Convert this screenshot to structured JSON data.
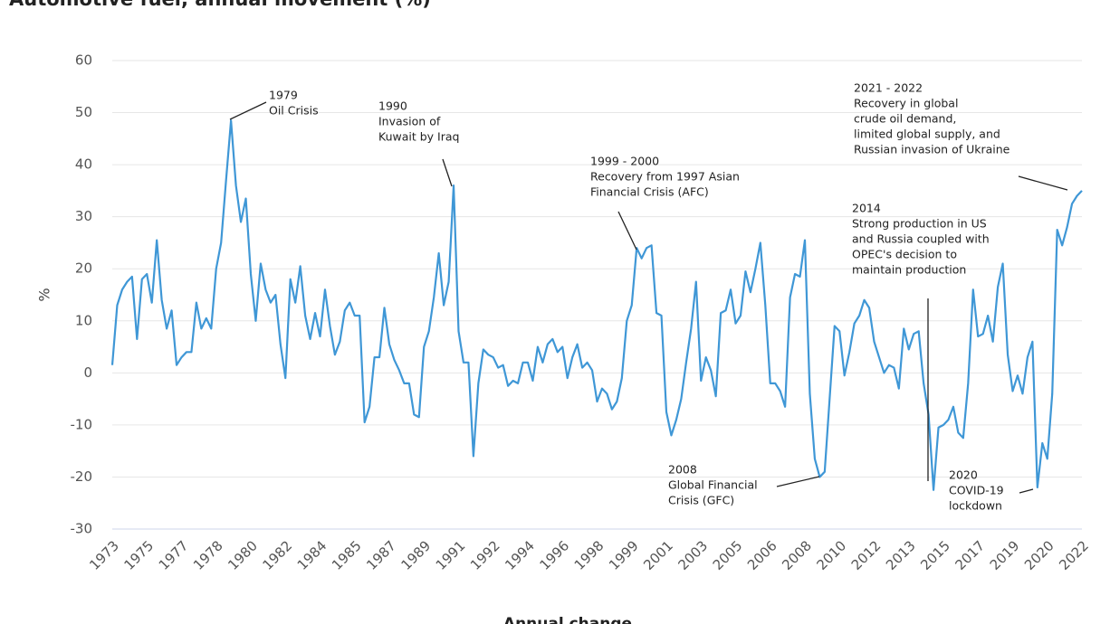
{
  "chart_data": {
    "type": "line",
    "title": "Automotive fuel, annual movement (%)",
    "x_label": "Annual change",
    "y_label": "%",
    "categories": [
      "1973",
      null,
      null,
      null,
      null,
      null,
      null,
      "1975",
      null,
      null,
      null,
      null,
      null,
      null,
      "1977",
      null,
      null,
      null,
      null,
      null,
      null,
      "1978",
      null,
      null,
      null,
      null,
      null,
      null,
      "1980",
      null,
      null,
      null,
      null,
      null,
      null,
      "1982",
      null,
      null,
      null,
      null,
      null,
      null,
      "1984",
      null,
      null,
      null,
      null,
      null,
      null,
      "1985",
      null,
      null,
      null,
      null,
      null,
      null,
      "1987",
      null,
      null,
      null,
      null,
      null,
      null,
      "1989",
      null,
      null,
      null,
      null,
      null,
      null,
      "1991",
      null,
      null,
      null,
      null,
      null,
      null,
      "1992",
      null,
      null,
      null,
      null,
      null,
      null,
      "1994",
      null,
      null,
      null,
      null,
      null,
      null,
      "1996",
      null,
      null,
      null,
      null,
      null,
      null,
      "1998",
      null,
      null,
      null,
      null,
      null,
      null,
      "1999",
      null,
      null,
      null,
      null,
      null,
      null,
      "2001",
      null,
      null,
      null,
      null,
      null,
      null,
      "2003",
      null,
      null,
      null,
      null,
      null,
      null,
      "2005",
      null,
      null,
      null,
      null,
      null,
      null,
      "2006",
      null,
      null,
      null,
      null,
      null,
      null,
      "2008",
      null,
      null,
      null,
      null,
      null,
      null,
      "2010",
      null,
      null,
      null,
      null,
      null,
      null,
      "2012",
      null,
      null,
      null,
      null,
      null,
      null,
      "2013",
      null,
      null,
      null,
      null,
      null,
      null,
      "2015",
      null,
      null,
      null,
      null,
      null,
      null,
      "2017",
      null,
      null,
      null,
      null,
      null,
      null,
      "2019",
      null,
      null,
      null,
      null,
      null,
      null,
      "2020",
      null,
      null,
      null,
      null,
      null,
      null,
      "2022"
    ],
    "values": [
      1.5,
      13,
      16,
      17.5,
      18.5,
      6.5,
      18,
      19,
      13.5,
      25.5,
      14,
      8.5,
      12,
      1.5,
      3,
      4,
      4,
      13.5,
      8.5,
      10.5,
      8.5,
      20,
      25,
      37,
      48.5,
      36,
      29,
      33.5,
      19,
      10,
      21,
      16,
      13.5,
      15,
      5.5,
      -1,
      18,
      13.5,
      20.5,
      11,
      6.5,
      11.5,
      7,
      16,
      9,
      3.5,
      6,
      12,
      13.5,
      11,
      11,
      -9.5,
      -6.5,
      3,
      3,
      12.5,
      5.5,
      2.5,
      0.5,
      -2,
      -2,
      -8,
      -8.5,
      5,
      8,
      14.5,
      23,
      13,
      17.5,
      36,
      8,
      2,
      2,
      -16,
      -2,
      4.5,
      3.5,
      3,
      1,
      1.5,
      -2.5,
      -1.5,
      -2,
      2,
      2,
      -1.5,
      5,
      2,
      5.5,
      6.5,
      4,
      5,
      -1,
      3,
      5.5,
      1,
      2,
      0.5,
      -5.5,
      -3,
      -4,
      -7,
      -5.5,
      -1,
      10,
      13,
      24,
      22,
      24,
      24.5,
      11.5,
      11,
      -7.5,
      -12,
      -9,
      -5,
      2,
      8.5,
      17.5,
      -1.5,
      3,
      0.5,
      -4.5,
      11.5,
      12,
      16,
      9.5,
      11,
      19.5,
      15.5,
      20,
      25,
      13,
      -2,
      -2,
      -3.5,
      -6.5,
      14.5,
      19,
      18.5,
      25.5,
      -4,
      -16.5,
      -20,
      -19,
      -5,
      9,
      8,
      -0.5,
      4,
      9.5,
      11,
      14,
      12.5,
      6,
      3,
      0,
      1.5,
      1,
      -3,
      8.5,
      4.5,
      7.5,
      8,
      -2,
      -8,
      -22.5,
      -10.5,
      -10,
      -9,
      -6.5,
      -11.5,
      -12.5,
      -2,
      16,
      7,
      7.5,
      11,
      6,
      16.5,
      21,
      3.5,
      -3.5,
      -0.5,
      -4,
      3,
      6,
      -22,
      -13.5,
      -16.5,
      -4,
      27.5,
      24.5,
      28,
      32.5,
      34,
      35
    ],
    "color": "#3f97d6",
    "ylim": [
      -30,
      60
    ],
    "yticks": [
      -30,
      -20,
      -10,
      0,
      10,
      20,
      30,
      40,
      50,
      60
    ],
    "grid": true,
    "annotations": [
      {
        "lines": [
          "1979",
          "Oil Crisis"
        ]
      },
      {
        "lines": [
          "1990",
          "Invasion of",
          "Kuwait by Iraq"
        ]
      },
      {
        "lines": [
          "1999 - 2000",
          "Recovery from 1997 Asian",
          "Financial Crisis (AFC)"
        ]
      },
      {
        "lines": [
          "2021 - 2022",
          "Recovery in global",
          "crude oil demand,",
          "limited global supply, and",
          "Russian invasion of Ukraine"
        ]
      },
      {
        "lines": [
          "2014",
          "Strong production in US",
          "and Russia coupled with",
          "OPEC's decision to",
          "maintain production"
        ]
      },
      {
        "lines": [
          "2008",
          "Global Financial",
          "Crisis (GFC)"
        ]
      },
      {
        "lines": [
          "2020",
          "COVID-19",
          "lockdown"
        ]
      }
    ]
  }
}
